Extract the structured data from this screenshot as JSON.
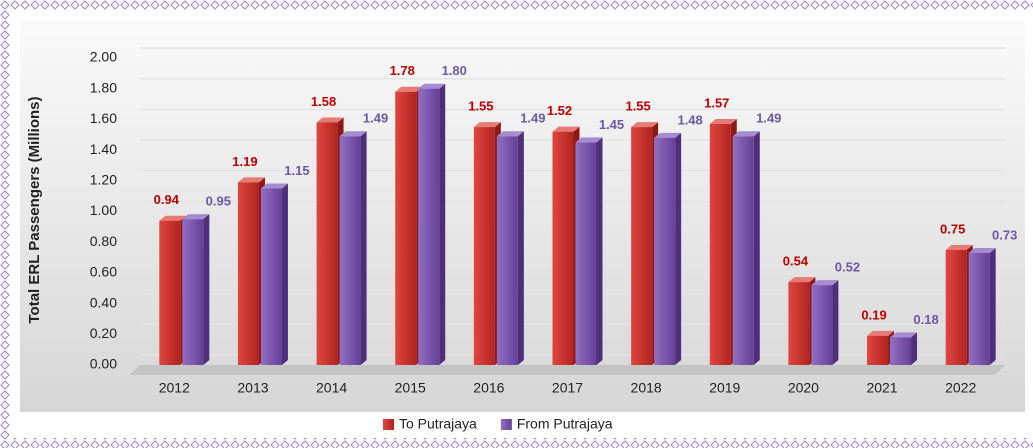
{
  "chart_data": {
    "type": "bar",
    "y_label": "Total ERL Passengers (Millions)",
    "categories": [
      "2012",
      "2013",
      "2014",
      "2015",
      "2016",
      "2017",
      "2018",
      "2019",
      "2020",
      "2021",
      "2022"
    ],
    "series": [
      {
        "name": "To Putrajaya",
        "color": "#c8302c",
        "label_color": "#c00000",
        "values": [
          0.94,
          1.19,
          1.58,
          1.78,
          1.55,
          1.52,
          1.55,
          1.57,
          0.54,
          0.19,
          0.75
        ],
        "value_labels": [
          "0.94",
          "1.19",
          "1.58",
          "1.78",
          "1.55",
          "1.52",
          "1.55",
          "1.57",
          "0.54",
          "0.19",
          "0.75"
        ]
      },
      {
        "name": "From Putrajaya",
        "color": "#7c52ad",
        "label_color": "#6a5aa6",
        "values": [
          0.95,
          1.15,
          1.49,
          1.8,
          1.49,
          1.45,
          1.48,
          1.49,
          0.52,
          0.18,
          0.73
        ],
        "value_labels": [
          "0.95",
          "1.15",
          "1.49",
          "1.80",
          "1.49",
          "1.45",
          "1.48",
          "1.49",
          "0.52",
          "0.18",
          "0.73"
        ]
      }
    ],
    "ylim": [
      0,
      2
    ],
    "yticks": [
      {
        "value": 0,
        "label": "0.00"
      },
      {
        "value": 0.2,
        "label": "0.20"
      },
      {
        "value": 0.4,
        "label": "0.40"
      },
      {
        "value": 0.6,
        "label": "0.60"
      },
      {
        "value": 0.8,
        "label": "0.80"
      },
      {
        "value": 1,
        "label": "1.00"
      },
      {
        "value": 1.2,
        "label": "1.20"
      },
      {
        "value": 1.4,
        "label": "1.40"
      },
      {
        "value": 1.6,
        "label": "1.60"
      },
      {
        "value": 1.8,
        "label": "1.80"
      },
      {
        "value": 2,
        "label": "2.00"
      }
    ],
    "grid": true,
    "legend": "bottom"
  }
}
